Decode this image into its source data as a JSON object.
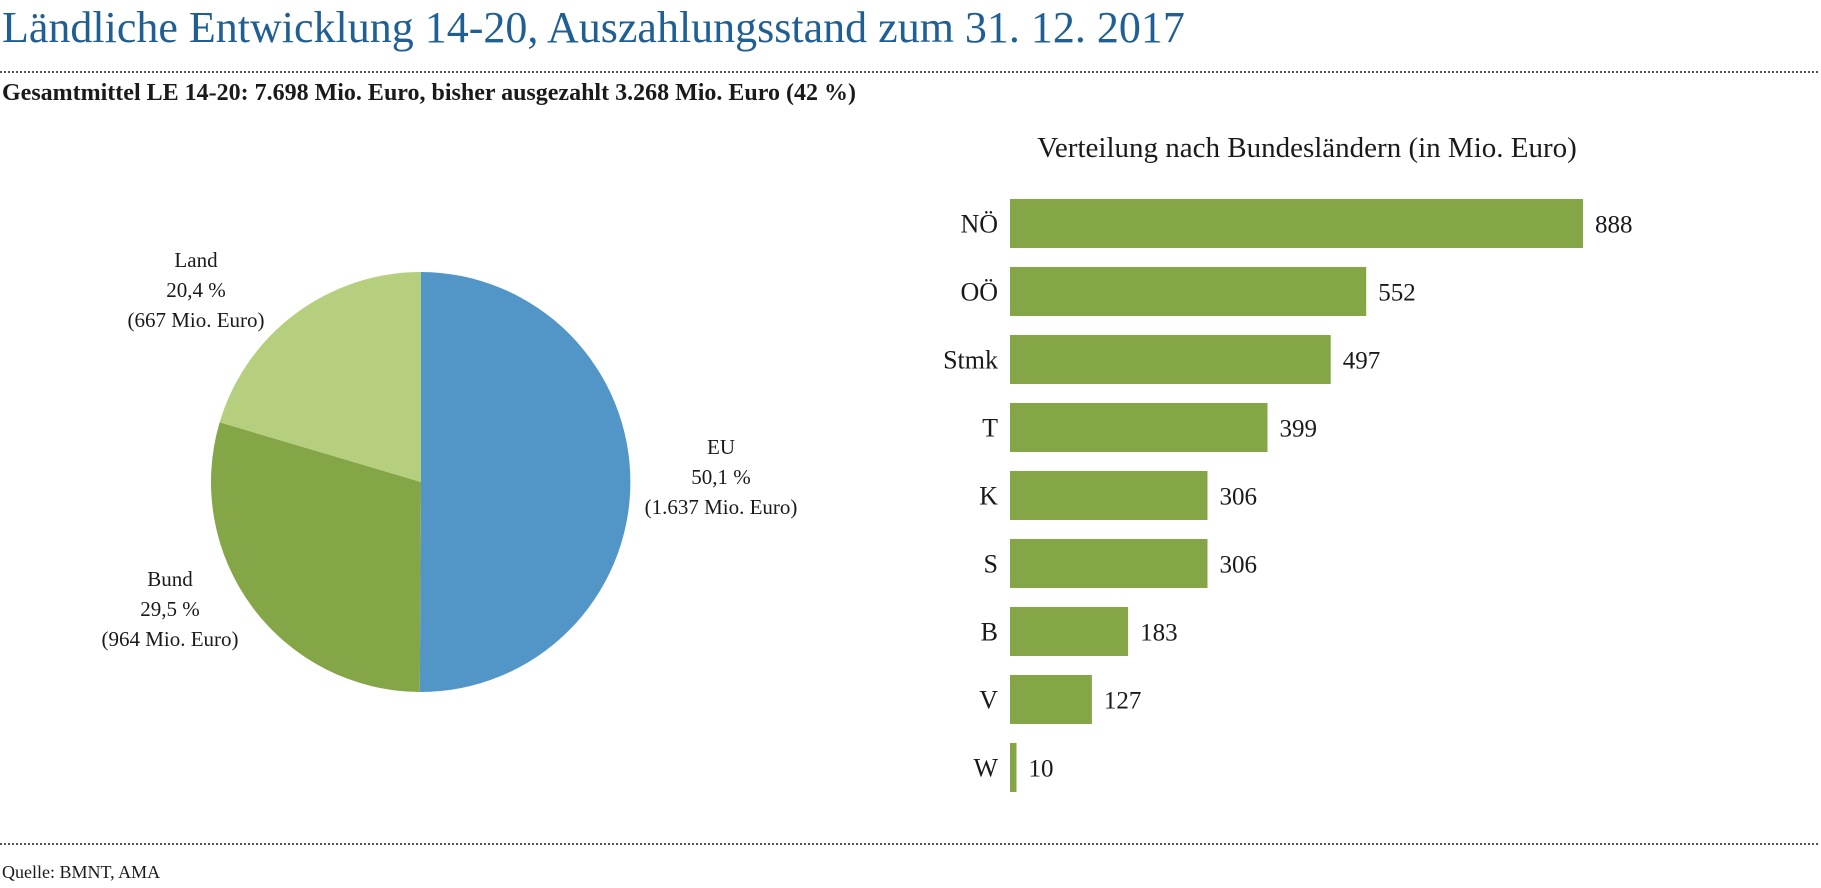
{
  "page": {
    "title": "Ländliche Entwicklung 14-20, Auszahlungsstand zum 31. 12. 2017",
    "subtitle": "Gesamtmittel LE 14-20: 7.698 Mio. Euro, bisher ausgezahlt 3.268 Mio. Euro (42 %)",
    "source": "Quelle: BMNT, AMA"
  },
  "chart_data": [
    {
      "type": "pie",
      "title": "",
      "slices": [
        {
          "name": "EU",
          "percent_label": "50,1 %",
          "amount_label": "(1.637 Mio. Euro)",
          "value": 1637,
          "color": "#5296c8"
        },
        {
          "name": "Bund",
          "percent_label": "29,5 %",
          "amount_label": "(964 Mio. Euro)",
          "value": 964,
          "color": "#84a647"
        },
        {
          "name": "Land",
          "percent_label": "20,4 %",
          "amount_label": "(667 Mio. Euro)",
          "value": 667,
          "color": "#b5cf7f"
        }
      ]
    },
    {
      "type": "bar",
      "orientation": "horizontal",
      "title": "Verteilung nach Bundesländern (in Mio. Euro)",
      "categories": [
        "NÖ",
        "OÖ",
        "Stmk",
        "T",
        "K",
        "S",
        "B",
        "V",
        "W"
      ],
      "values": [
        888,
        552,
        497,
        399,
        306,
        306,
        183,
        127,
        10
      ],
      "value_labels": [
        "888",
        "552",
        "497",
        "399",
        "306",
        "306",
        "183",
        "127",
        "10"
      ],
      "xlim": [
        0,
        888
      ],
      "grid": false,
      "color": "#84a647"
    }
  ]
}
